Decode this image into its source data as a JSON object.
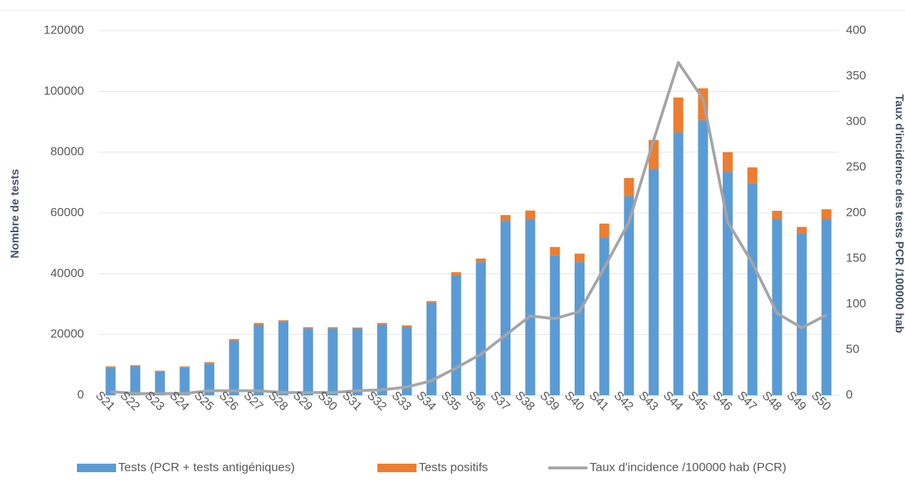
{
  "chart_data": {
    "type": "bar",
    "stacked": true,
    "categories": [
      "S21",
      "S22",
      "S23",
      "S24",
      "S25",
      "S26",
      "S27",
      "S28",
      "S29",
      "S30",
      "S31",
      "S32",
      "S33",
      "S34",
      "S35",
      "S36",
      "S37",
      "S38",
      "S39",
      "S40",
      "S41",
      "S42",
      "S43",
      "S44",
      "S45",
      "S46",
      "S47",
      "S48",
      "S49",
      "S50"
    ],
    "ylabel": "Nombre de tests",
    "y2label": "Taux d'incidence des tests PCR /100000 hab",
    "ylim": [
      0,
      120000
    ],
    "yticks": [
      0,
      20000,
      40000,
      60000,
      80000,
      100000,
      120000
    ],
    "y2lim": [
      0,
      400
    ],
    "y2ticks": [
      0,
      50,
      100,
      150,
      200,
      250,
      300,
      350,
      400
    ],
    "grid": true,
    "legend": "bottom",
    "series": [
      {
        "name": "Tests (PCR + tests antigéniques)",
        "type": "bar",
        "color": "#5b9bd5",
        "values": [
          9000,
          9500,
          7800,
          9200,
          10500,
          18000,
          23200,
          24200,
          22000,
          22000,
          22000,
          23300,
          22500,
          30500,
          39500,
          43800,
          57500,
          58000,
          46000,
          43800,
          52000,
          65500,
          74500,
          86500,
          90500,
          73500,
          69800,
          58000,
          53200,
          58000
        ]
      },
      {
        "name": "Tests positifs",
        "type": "bar",
        "color": "#ed7d31",
        "values": [
          500,
          400,
          300,
          300,
          400,
          500,
          600,
          500,
          400,
          400,
          300,
          500,
          500,
          500,
          1000,
          1200,
          1800,
          2800,
          2800,
          2800,
          4500,
          6000,
          9500,
          11500,
          10500,
          6500,
          5200,
          2700,
          2200,
          3200
        ]
      },
      {
        "name": "Taux d'incidence /100000 hab (PCR)",
        "type": "line",
        "axis": "y2",
        "color": "#a5a5a5",
        "values": [
          4,
          2,
          2,
          2,
          5,
          5,
          5,
          3,
          3,
          3,
          5,
          6,
          9,
          16,
          30,
          45,
          66,
          87,
          84,
          92,
          140,
          190,
          280,
          365,
          325,
          190,
          145,
          90,
          74,
          88
        ]
      }
    ]
  }
}
